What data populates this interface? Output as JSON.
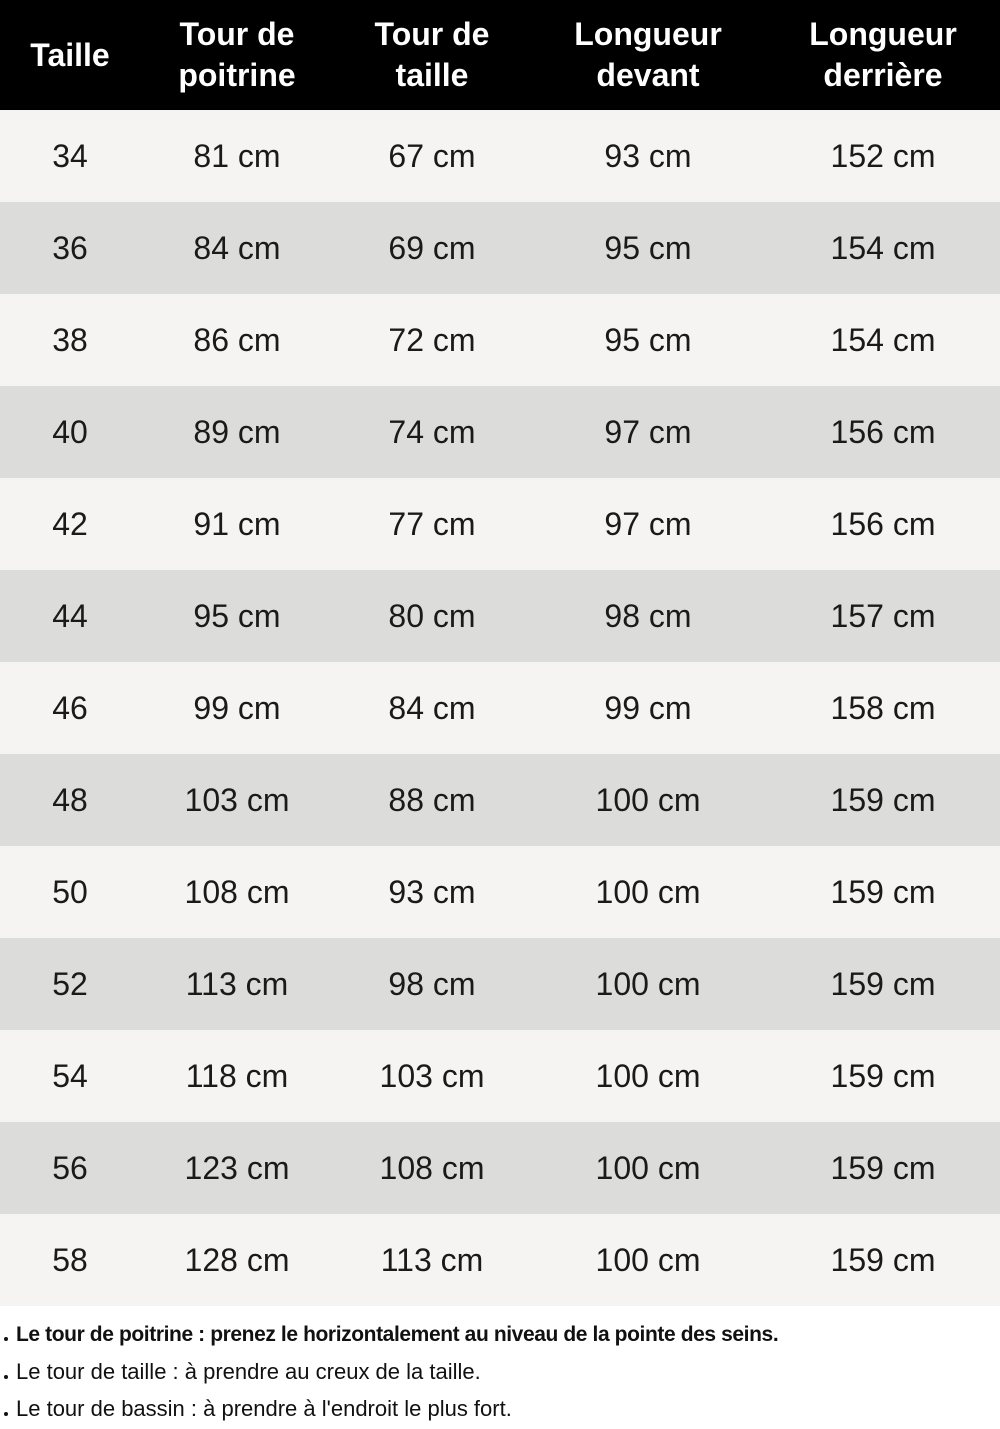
{
  "table": {
    "headers": [
      "Taille",
      "Tour de\npoitrine",
      "Tour de\ntaille",
      "Longueur\ndevant",
      "Longueur\nderrière"
    ],
    "rows": [
      [
        "34",
        "81 cm",
        "67 cm",
        "93 cm",
        "152 cm"
      ],
      [
        "36",
        "84 cm",
        "69 cm",
        "95 cm",
        "154 cm"
      ],
      [
        "38",
        "86 cm",
        "72 cm",
        "95 cm",
        "154 cm"
      ],
      [
        "40",
        "89 cm",
        "74 cm",
        "97 cm",
        "156 cm"
      ],
      [
        "42",
        "91 cm",
        "77 cm",
        "97 cm",
        "156 cm"
      ],
      [
        "44",
        "95 cm",
        "80 cm",
        "98 cm",
        "157 cm"
      ],
      [
        "46",
        "99 cm",
        "84 cm",
        "99 cm",
        "158 cm"
      ],
      [
        "48",
        "103 cm",
        "88 cm",
        "100 cm",
        "159 cm"
      ],
      [
        "50",
        "108 cm",
        "93 cm",
        "100 cm",
        "159 cm"
      ],
      [
        "52",
        "113 cm",
        "98 cm",
        "100 cm",
        "159 cm"
      ],
      [
        "54",
        "118 cm",
        "103 cm",
        "100 cm",
        "159 cm"
      ],
      [
        "56",
        "123 cm",
        "108 cm",
        "100 cm",
        "159 cm"
      ],
      [
        "58",
        "128 cm",
        "113 cm",
        "100 cm",
        "159 cm"
      ]
    ]
  },
  "notes": [
    "Le tour de poitrine : prenez le horizontalement au niveau de la pointe des seins.",
    "Le tour de taille : à prendre au creux de la taille.",
    "Le tour de bassin : à prendre à l'endroit le plus fort."
  ],
  "colors": {
    "header_bg": "#000000",
    "row_light": "#f5f4f2",
    "row_dark": "#dcdddb"
  }
}
